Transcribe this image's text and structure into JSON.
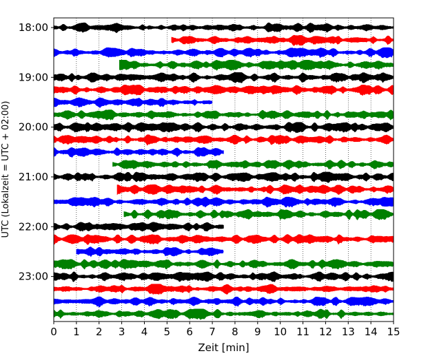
{
  "chart_data": {
    "type": "line",
    "title": "",
    "xlabel": "Zeit  [min]",
    "ylabel": "UTC (Lokalzeit = UTC + 02:00)",
    "xlim": [
      0,
      15
    ],
    "x_ticks": [
      "0",
      "1",
      "2",
      "3",
      "4",
      "5",
      "6",
      "7",
      "8",
      "9",
      "10",
      "11",
      "12",
      "13",
      "14",
      "15"
    ],
    "y_tick_labels": [
      "18:00",
      "19:00",
      "20:00",
      "21:00",
      "22:00",
      "23:00"
    ],
    "grid": "vertical dotted",
    "color_cycle": [
      "#000000",
      "#ff0000",
      "#0000ff",
      "#008000"
    ],
    "rows": [
      {
        "label": "18:00",
        "color": "#000000",
        "start_min": 0.0
      },
      {
        "label": "18:15",
        "color": "#ff0000",
        "start_min": 5.2
      },
      {
        "label": "18:30",
        "color": "#0000ff",
        "start_min": 0.0
      },
      {
        "label": "18:45",
        "color": "#008000",
        "start_min": 2.9
      },
      {
        "label": "19:00",
        "color": "#000000",
        "start_min": 0.0
      },
      {
        "label": "19:15",
        "color": "#ff0000",
        "start_min": 0.0
      },
      {
        "label": "19:30",
        "color": "#0000ff",
        "start_min": 0.0,
        "end_min": 7.0
      },
      {
        "label": "19:45",
        "color": "#008000",
        "start_min": 0.0
      },
      {
        "label": "20:00",
        "color": "#000000",
        "start_min": 0.0
      },
      {
        "label": "20:15",
        "color": "#ff0000",
        "start_min": 0.0
      },
      {
        "label": "20:30",
        "color": "#0000ff",
        "start_min": 0.0,
        "end_min": 7.5
      },
      {
        "label": "20:45",
        "color": "#008000",
        "start_min": 2.6
      },
      {
        "label": "21:00",
        "color": "#000000",
        "start_min": 0.0
      },
      {
        "label": "21:15",
        "color": "#ff0000",
        "start_min": 2.8
      },
      {
        "label": "21:30",
        "color": "#0000ff",
        "start_min": 0.0
      },
      {
        "label": "21:45",
        "color": "#008000",
        "start_min": 3.1
      },
      {
        "label": "22:00",
        "color": "#000000",
        "start_min": 0.0,
        "end_min": 7.5
      },
      {
        "label": "22:15",
        "color": "#ff0000",
        "start_min": 0.0
      },
      {
        "label": "22:30",
        "color": "#0000ff",
        "start_min": 1.0,
        "end_min": 7.5
      },
      {
        "label": "22:45",
        "color": "#008000",
        "start_min": 0.0
      },
      {
        "label": "23:00",
        "color": "#000000",
        "start_min": 0.0
      },
      {
        "label": "23:15",
        "color": "#ff0000",
        "start_min": 0.0
      },
      {
        "label": "23:30",
        "color": "#0000ff",
        "start_min": 0.0
      },
      {
        "label": "23:45",
        "color": "#008000",
        "start_min": 0.0
      }
    ]
  }
}
